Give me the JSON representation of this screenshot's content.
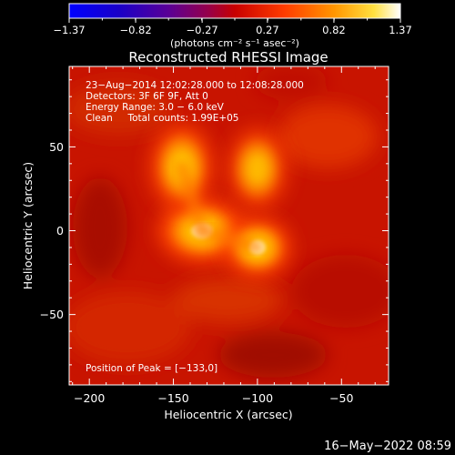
{
  "chart_data": {
    "type": "heatmap",
    "title": "Reconstructed RHESSI Image",
    "xlabel": "Heliocentric X (arcsec)",
    "ylabel": "Heliocentric Y (arcsec)",
    "xlim": [
      -212,
      -22
    ],
    "ylim": [
      -92,
      98
    ],
    "x_ticks": [
      -200,
      -150,
      -100,
      -50
    ],
    "x_tick_labels": [
      "−200",
      "−150",
      "−100",
      "−50"
    ],
    "y_ticks": [
      -50,
      0,
      50
    ],
    "y_tick_labels": [
      "−50",
      "0",
      "50"
    ],
    "colorbar": {
      "min": -1.37,
      "max": 1.37,
      "ticks": [
        -1.37,
        -0.82,
        -0.27,
        0.27,
        0.82,
        1.37
      ],
      "tick_labels": [
        "−1.37",
        "−0.82",
        "−0.27",
        "0.27",
        "0.82",
        "1.37"
      ],
      "unit_label": "(photons cm⁻² s⁻¹ asec⁻²)",
      "colormap": "red-temperature"
    },
    "sources": [
      {
        "x": -133,
        "y": 0,
        "peak": 1.37
      },
      {
        "x": -100,
        "y": -10,
        "peak": 1.15
      },
      {
        "x": -145,
        "y": 38,
        "peak": 1.0
      },
      {
        "x": -100,
        "y": 37,
        "peak": 0.85
      }
    ],
    "annotations": [
      "23−Aug−2014 12:02:28.000 to 12:08:28.000",
      "Detectors: 3F 6F 9F, Att 0",
      "Energy Range: 3.0 − 6.0 keV",
      "Clean     Total counts: 1.99E+05"
    ],
    "peak_text": "Position of Peak = [−133,0]",
    "grid": false,
    "legend": "none"
  },
  "footer": {
    "date": "16−May−2022 08:59"
  }
}
